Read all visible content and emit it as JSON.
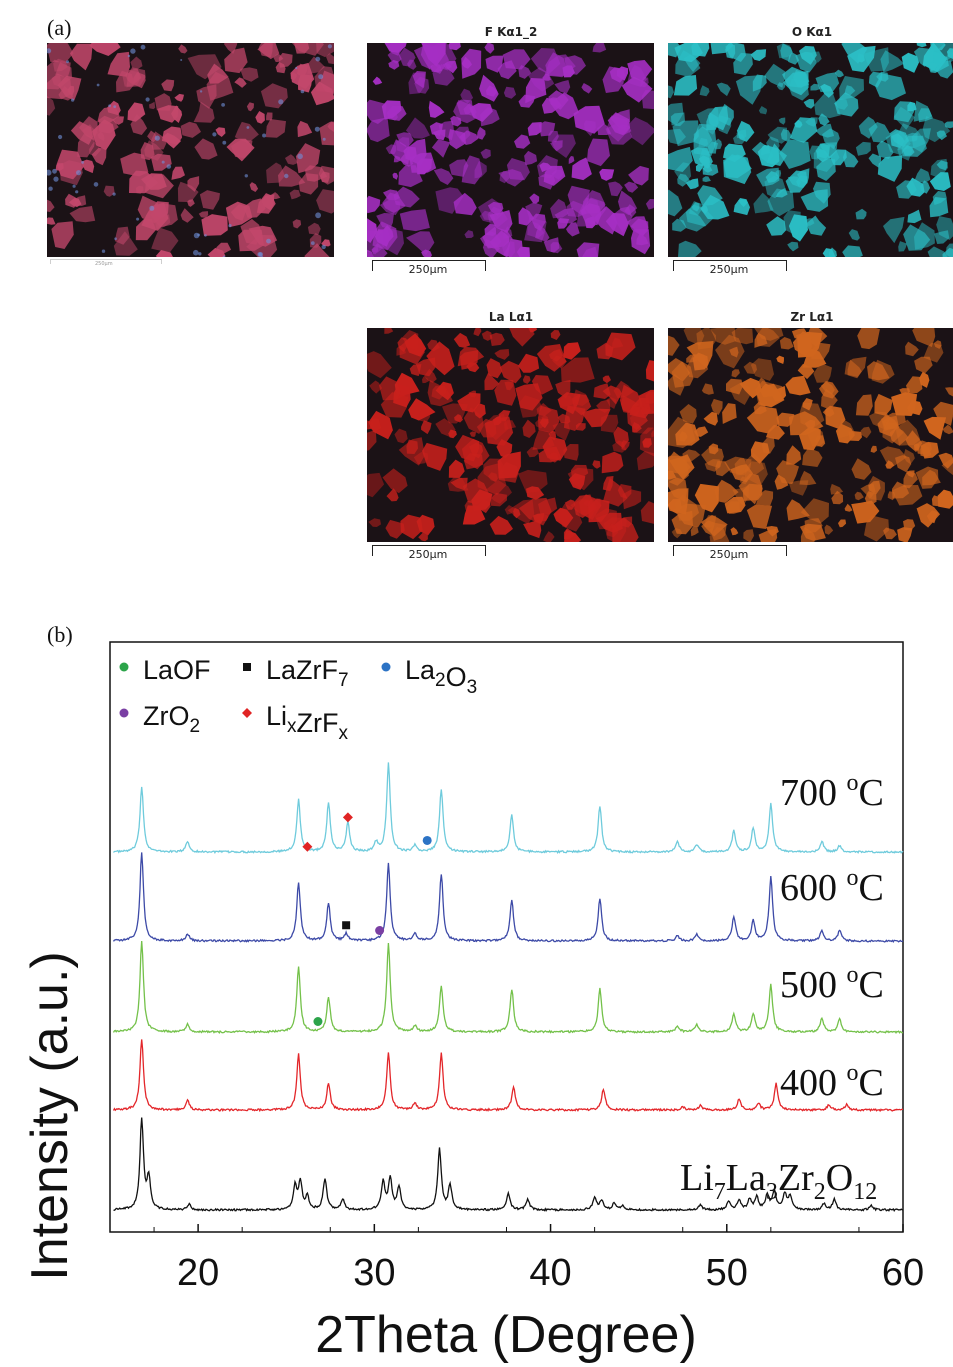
{
  "panel_a": {
    "label": "(a)",
    "maps": [
      {
        "id": "sem",
        "title": "",
        "color": "#c2476b"
      },
      {
        "id": "f",
        "title": "F Kα1_2",
        "color": "#a62fc4"
      },
      {
        "id": "o",
        "title": "O Kα1",
        "color": "#2bbfc6"
      },
      {
        "id": "la",
        "title": "La Lα1",
        "color": "#c8201c"
      },
      {
        "id": "zr",
        "title": "Zr Lα1",
        "color": "#d0651e"
      }
    ],
    "scale_label": "250μm",
    "sem_scale_label": "250μm"
  },
  "panel_b": {
    "label": "(b)"
  },
  "chart_data": {
    "type": "line",
    "xlabel": "2Theta (Degree)",
    "ylabel": "Intensity (a.u.)",
    "xlim": [
      15,
      60
    ],
    "xticks": [
      20,
      30,
      40,
      50,
      60
    ],
    "legend": {
      "placement": "top-left",
      "entries": [
        {
          "name": "LaOF",
          "sub": "",
          "marker": "circle",
          "color": "#2ca44a"
        },
        {
          "name": "LaZrF",
          "sub": "7",
          "marker": "square",
          "color": "#111111"
        },
        {
          "name": "La",
          "sub": "2",
          "name2": "O",
          "sub2": "3",
          "marker": "circle",
          "color": "#2c73c5"
        },
        {
          "name": "ZrO",
          "sub": "2",
          "marker": "circle",
          "color": "#7a3fa3"
        },
        {
          "name": "Li",
          "sub": "x",
          "name2": "ZrF",
          "sub2": "x",
          "marker": "diamond",
          "color": "#e02424"
        }
      ]
    },
    "series": [
      {
        "name": "700 °C",
        "label_main": "700 ",
        "label_sup": "o",
        "label_unit": "C",
        "color": "#6fcbdc",
        "offset": 4,
        "peaks": [
          [
            16.8,
            0.62
          ],
          [
            19.4,
            0.1
          ],
          [
            25.7,
            0.5
          ],
          [
            27.4,
            0.47
          ],
          [
            28.5,
            0.28
          ],
          [
            30.1,
            0.09
          ],
          [
            30.8,
            0.84
          ],
          [
            32.3,
            0.06
          ],
          [
            33.8,
            0.6
          ],
          [
            37.8,
            0.35
          ],
          [
            42.8,
            0.44
          ],
          [
            47.2,
            0.1
          ],
          [
            48.3,
            0.07
          ],
          [
            50.4,
            0.2
          ],
          [
            51.5,
            0.22
          ],
          [
            52.5,
            0.46
          ],
          [
            55.4,
            0.1
          ],
          [
            56.4,
            0.06
          ]
        ]
      },
      {
        "name": "600 °C",
        "label_main": "600 ",
        "label_sup": "o",
        "label_unit": "C",
        "color": "#3d4aa7",
        "offset": 3,
        "peaks": [
          [
            16.8,
            0.84
          ],
          [
            19.4,
            0.07
          ],
          [
            25.7,
            0.56
          ],
          [
            27.4,
            0.36
          ],
          [
            28.4,
            0.07
          ],
          [
            30.8,
            0.74
          ],
          [
            32.3,
            0.07
          ],
          [
            33.8,
            0.64
          ],
          [
            37.8,
            0.39
          ],
          [
            42.8,
            0.41
          ],
          [
            47.2,
            0.05
          ],
          [
            48.3,
            0.06
          ],
          [
            50.4,
            0.23
          ],
          [
            51.5,
            0.19
          ],
          [
            52.5,
            0.61
          ],
          [
            55.4,
            0.1
          ],
          [
            56.4,
            0.1
          ]
        ]
      },
      {
        "name": "500 °C",
        "label_main": "500 ",
        "label_sup": "o",
        "label_unit": "C",
        "color": "#74c14a",
        "offset": 2,
        "peaks": [
          [
            16.8,
            0.86
          ],
          [
            19.4,
            0.07
          ],
          [
            25.7,
            0.62
          ],
          [
            27.4,
            0.33
          ],
          [
            30.8,
            0.85
          ],
          [
            32.3,
            0.06
          ],
          [
            33.8,
            0.43
          ],
          [
            37.8,
            0.41
          ],
          [
            42.8,
            0.41
          ],
          [
            47.2,
            0.06
          ],
          [
            48.3,
            0.07
          ],
          [
            50.4,
            0.17
          ],
          [
            51.5,
            0.17
          ],
          [
            52.5,
            0.45
          ],
          [
            55.4,
            0.13
          ],
          [
            56.4,
            0.12
          ]
        ]
      },
      {
        "name": "400 °C",
        "label_main": "400 ",
        "label_sup": "o",
        "label_unit": "C",
        "color": "#e3262a",
        "offset": 1,
        "peaks": [
          [
            16.8,
            0.68
          ],
          [
            19.4,
            0.09
          ],
          [
            25.7,
            0.53
          ],
          [
            27.4,
            0.25
          ],
          [
            30.8,
            0.54
          ],
          [
            32.3,
            0.06
          ],
          [
            33.8,
            0.54
          ],
          [
            37.9,
            0.22
          ],
          [
            43.0,
            0.2
          ],
          [
            47.5,
            0.03
          ],
          [
            48.5,
            0.04
          ],
          [
            50.7,
            0.1
          ],
          [
            51.8,
            0.06
          ],
          [
            52.8,
            0.25
          ],
          [
            55.8,
            0.05
          ],
          [
            56.8,
            0.05
          ]
        ]
      },
      {
        "name": "Li7La3Zr2O12",
        "label_main": "Li",
        "subs": [
          [
            "7",
            "La"
          ],
          [
            "3",
            "Zr"
          ],
          [
            "2",
            "O"
          ],
          [
            "12",
            ""
          ]
        ],
        "color": "#111111",
        "offset": 0,
        "peaks": [
          [
            16.8,
            0.86
          ],
          [
            17.2,
            0.3
          ],
          [
            19.5,
            0.05
          ],
          [
            25.5,
            0.22
          ],
          [
            25.8,
            0.26
          ],
          [
            26.2,
            0.12
          ],
          [
            27.2,
            0.3
          ],
          [
            28.2,
            0.1
          ],
          [
            30.5,
            0.26
          ],
          [
            30.9,
            0.3
          ],
          [
            31.4,
            0.22
          ],
          [
            33.7,
            0.58
          ],
          [
            34.3,
            0.23
          ],
          [
            37.6,
            0.16
          ],
          [
            38.7,
            0.1
          ],
          [
            42.5,
            0.12
          ],
          [
            42.9,
            0.09
          ],
          [
            43.6,
            0.06
          ],
          [
            44.1,
            0.04
          ],
          [
            48.5,
            0.05
          ],
          [
            50.1,
            0.08
          ],
          [
            50.7,
            0.09
          ],
          [
            51.3,
            0.1
          ],
          [
            51.7,
            0.12
          ],
          [
            52.3,
            0.14
          ],
          [
            52.7,
            0.18
          ],
          [
            53.3,
            0.15
          ],
          [
            53.6,
            0.12
          ],
          [
            55.5,
            0.06
          ],
          [
            56.1,
            0.1
          ],
          [
            58.2,
            0.04
          ]
        ]
      }
    ],
    "phase_markers": [
      {
        "series": 0,
        "x": 26.2,
        "y": 0.05,
        "phase": "LixZrFx",
        "marker": "diamond",
        "color": "#e02424"
      },
      {
        "series": 0,
        "x": 28.5,
        "y": 0.33,
        "phase": "LixZrFx",
        "marker": "diamond",
        "color": "#e02424"
      },
      {
        "series": 0,
        "x": 33.0,
        "y": 0.11,
        "phase": "La2O3",
        "marker": "circle",
        "color": "#2c73c5"
      },
      {
        "series": 1,
        "x": 28.4,
        "y": 0.15,
        "phase": "LaZrF7",
        "marker": "square",
        "color": "#111111"
      },
      {
        "series": 1,
        "x": 30.3,
        "y": 0.1,
        "phase": "ZrO2",
        "marker": "circle",
        "color": "#7a3fa3"
      },
      {
        "series": 2,
        "x": 26.8,
        "y": 0.1,
        "phase": "LaOF",
        "marker": "circle",
        "color": "#2ca44a"
      }
    ]
  }
}
